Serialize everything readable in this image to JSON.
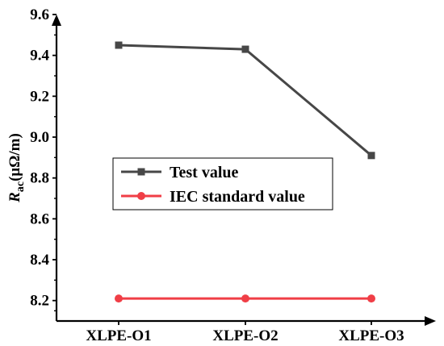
{
  "chart_data": {
    "type": "line",
    "categories": [
      "XLPE-O1",
      "XLPE-O2",
      "XLPE-O3"
    ],
    "ylim": [
      8.1,
      9.6
    ],
    "yticks": [
      8.2,
      8.4,
      8.6,
      8.8,
      9.0,
      9.2,
      9.4,
      9.6
    ],
    "ytick_labels": [
      "8.2",
      "8.4",
      "8.6",
      "8.8",
      "9.0",
      "9.2",
      "9.4",
      "9.6"
    ],
    "ylabel": {
      "main": "R",
      "sub": "ac",
      "unit": "(μΩ/m)"
    },
    "xlabel": "",
    "title": "",
    "grid": false,
    "legend_position": "middle-left",
    "series": [
      {
        "name": "Test value",
        "values": [
          9.45,
          9.43,
          8.91
        ],
        "color": "#474747",
        "marker": "square"
      },
      {
        "name": "IEC standard value",
        "values": [
          8.21,
          8.21,
          8.21
        ],
        "color": "#f03e46",
        "marker": "circle"
      }
    ]
  }
}
